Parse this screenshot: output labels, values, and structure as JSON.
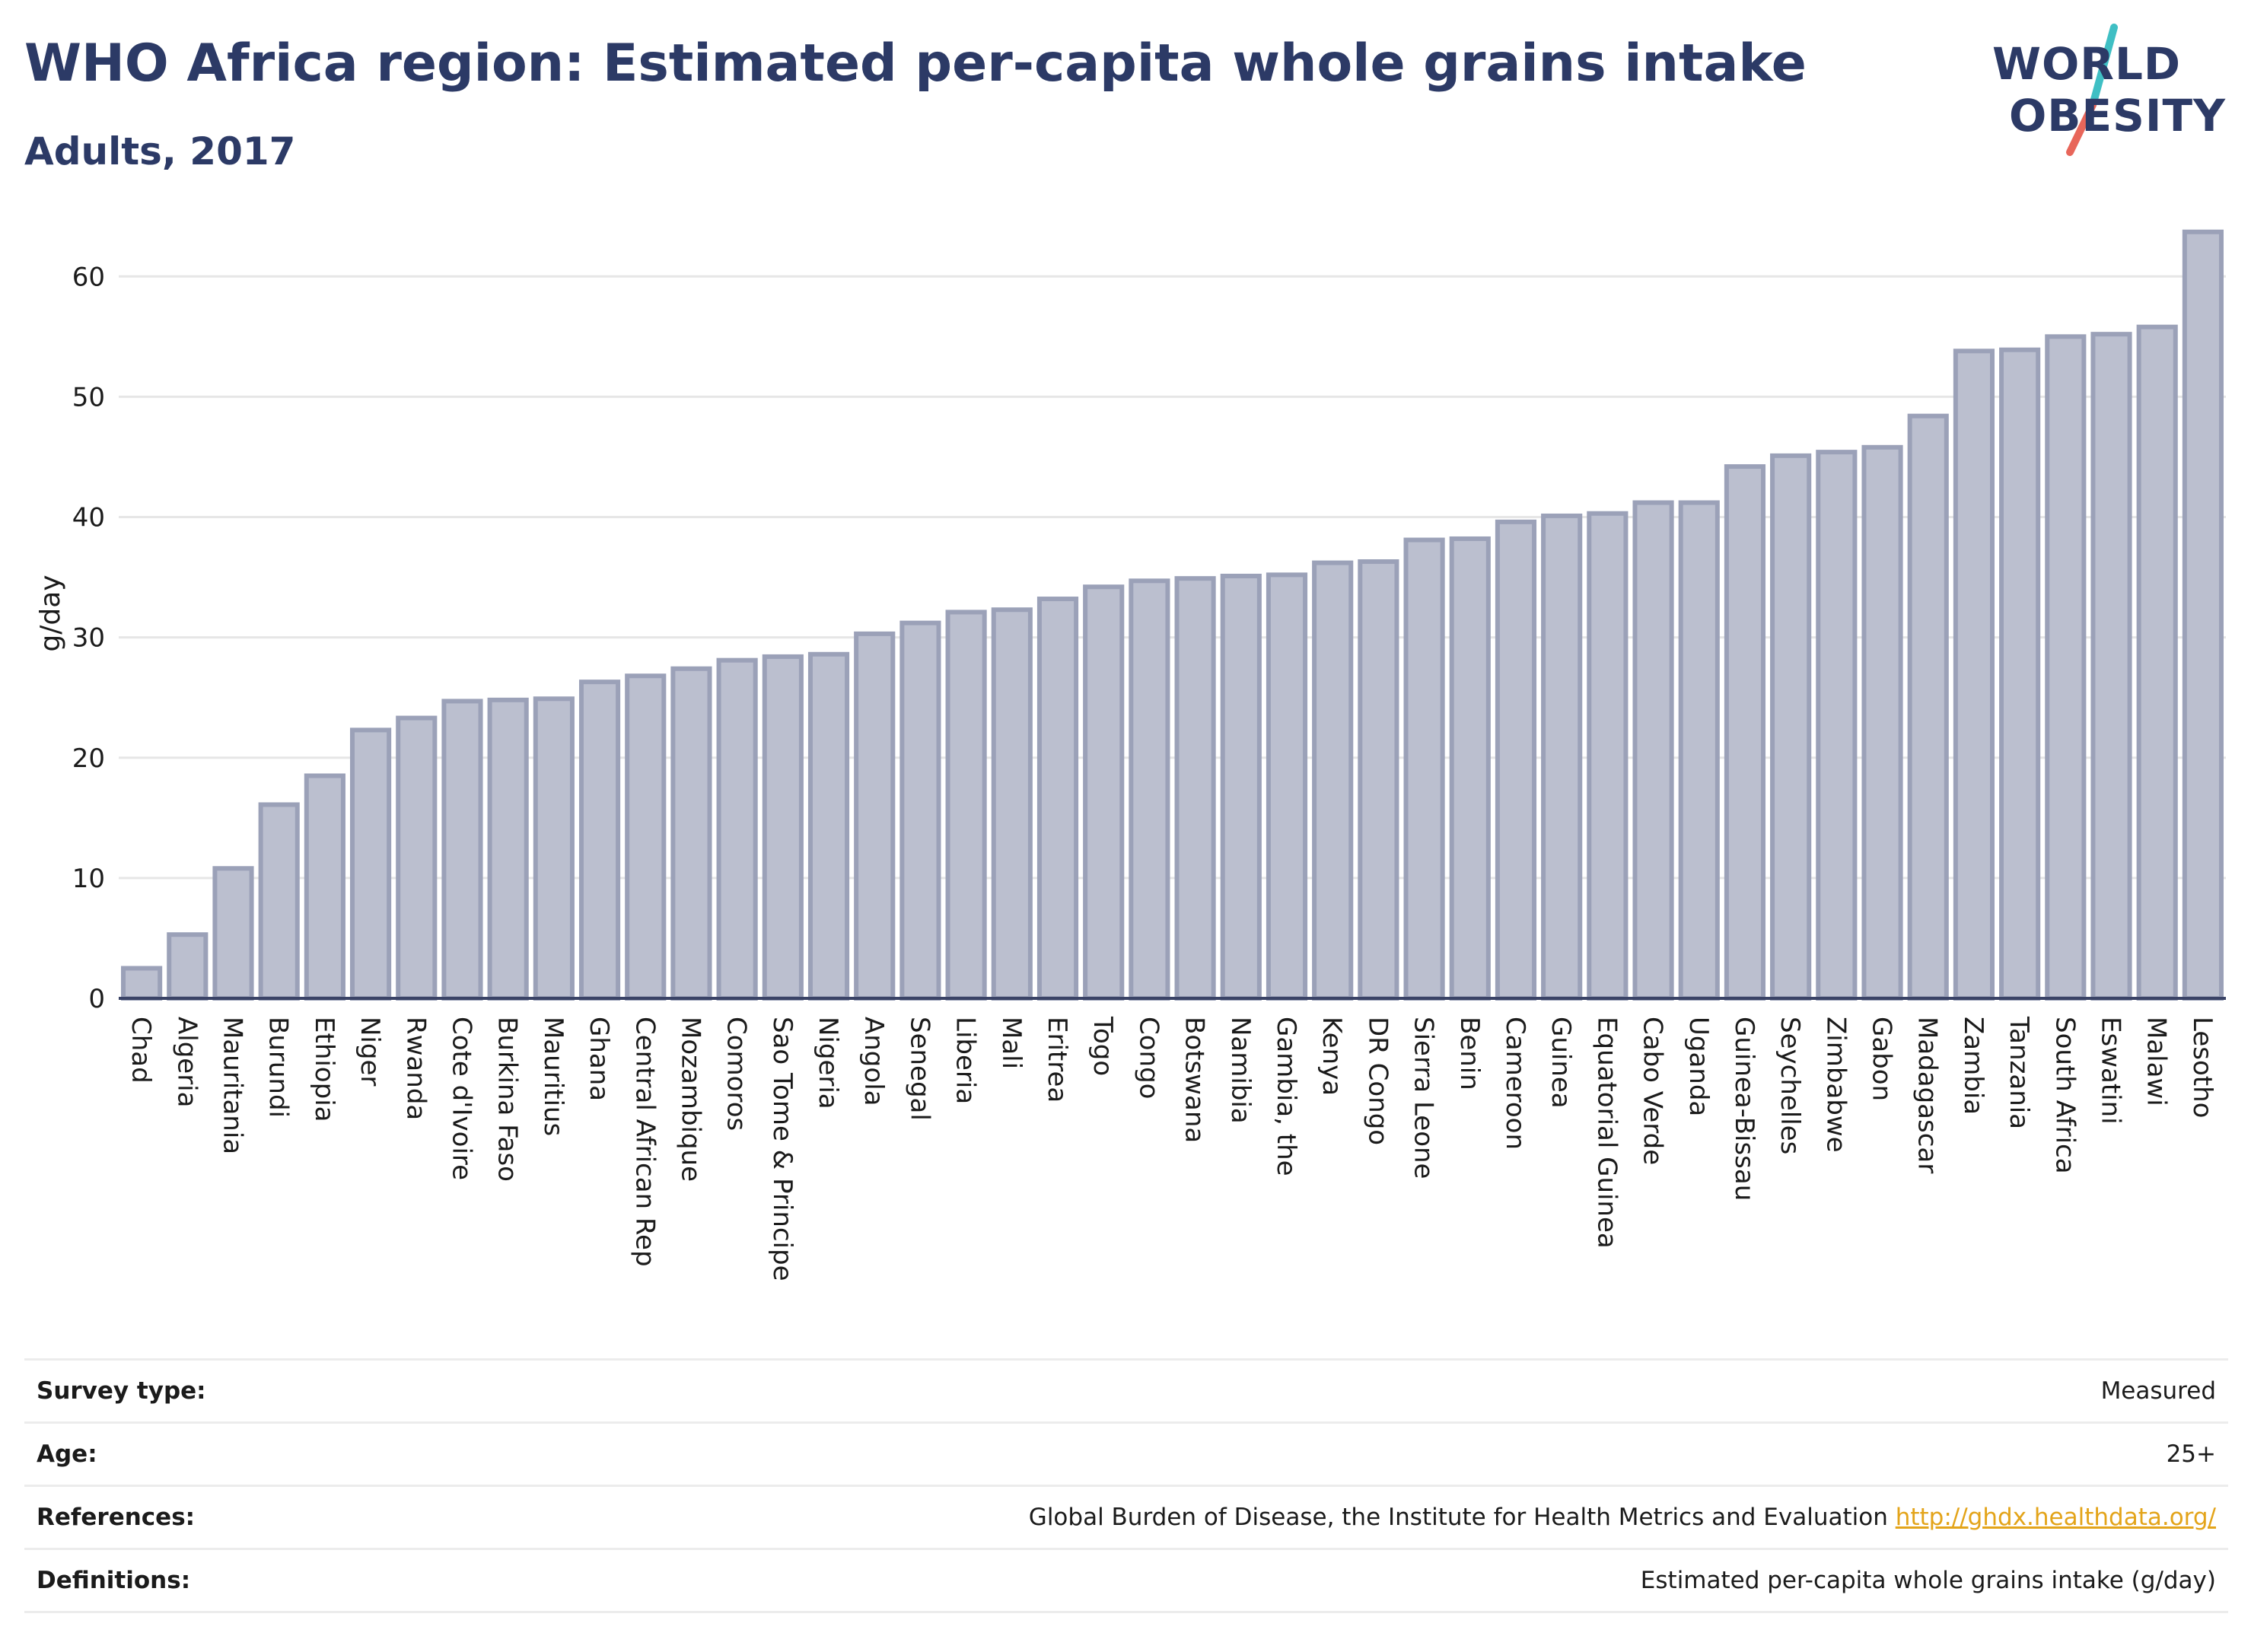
{
  "header": {
    "title": "WHO Africa region: Estimated per-capita whole grains intake",
    "subtitle": "Adults, 2017"
  },
  "logo": {
    "line1": "WORLD",
    "line2": "OBESITY",
    "slash_colors": [
      "#3fbfc4",
      "#e8665a"
    ]
  },
  "colors": {
    "bar_fill": "#bbbfcf",
    "bar_stroke": "#9ba1b8",
    "axis": "#3a4366",
    "grid": "#e6e6e6",
    "link": "#e3a41a"
  },
  "chart_data": {
    "type": "bar",
    "title": "WHO Africa region: Estimated per-capita whole grains intake",
    "subtitle": "Adults, 2017",
    "xlabel": "",
    "ylabel": "g/day",
    "ylim": [
      0,
      64
    ],
    "yticks": [
      0,
      10,
      20,
      30,
      40,
      50,
      60
    ],
    "grid": true,
    "categories": [
      "Chad",
      "Algeria",
      "Mauritania",
      "Burundi",
      "Ethiopia",
      "Niger",
      "Rwanda",
      "Cote d'Ivoire",
      "Burkina Faso",
      "Mauritius",
      "Ghana",
      "Central African Rep",
      "Mozambique",
      "Comoros",
      "Sao Tome & Principe",
      "Nigeria",
      "Angola",
      "Senegal",
      "Liberia",
      "Mali",
      "Eritrea",
      "Togo",
      "Congo",
      "Botswana",
      "Namibia",
      "Gambia, the",
      "Kenya",
      "DR Congo",
      "Sierra Leone",
      "Benin",
      "Cameroon",
      "Guinea",
      "Equatorial Guinea",
      "Cabo Verde",
      "Uganda",
      "Guinea-Bissau",
      "Seychelles",
      "Zimbabwe",
      "Gabon",
      "Madagascar",
      "Zambia",
      "Tanzania",
      "South Africa",
      "Eswatini",
      "Malawi",
      "Lesotho"
    ],
    "values": [
      2.5,
      5.3,
      10.8,
      16.1,
      18.5,
      22.3,
      23.3,
      24.7,
      24.8,
      24.9,
      26.3,
      26.8,
      27.4,
      28.1,
      28.4,
      28.6,
      30.3,
      31.2,
      32.1,
      32.3,
      33.2,
      34.2,
      34.7,
      34.9,
      35.1,
      35.2,
      36.2,
      36.3,
      38.1,
      38.2,
      39.6,
      40.1,
      40.3,
      41.2,
      41.2,
      44.2,
      45.1,
      45.4,
      45.8,
      48.4,
      53.8,
      53.9,
      55.0,
      55.2,
      55.8,
      63.7
    ]
  },
  "meta": {
    "rows": [
      {
        "label": "Survey type:",
        "value": "Measured"
      },
      {
        "label": "Age:",
        "value": "25+"
      },
      {
        "label": "References:",
        "value": "Global Burden of Disease, the Institute for Health Metrics and Evaluation",
        "link": "http://ghdx.healthdata.org/"
      },
      {
        "label": "Definitions:",
        "value": "Estimated per-capita whole grains intake (g/day)"
      }
    ]
  }
}
